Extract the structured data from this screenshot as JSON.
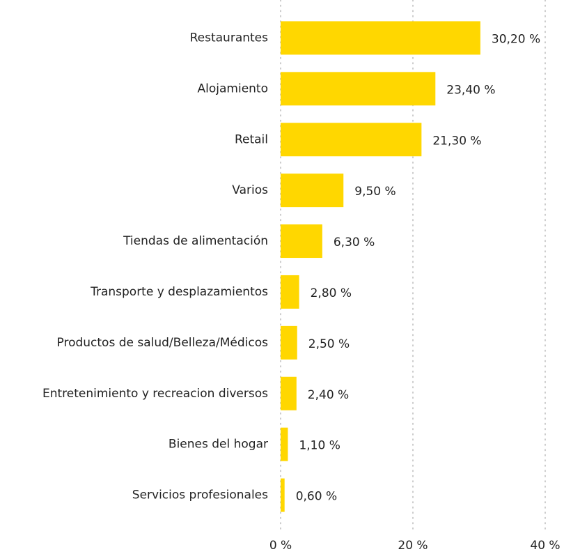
{
  "chart_data": {
    "type": "bar",
    "orientation": "horizontal",
    "categories": [
      "Restaurantes",
      "Alojamiento",
      "Retail",
      "Varios",
      "Tiendas de alimentación",
      "Transporte y desplazamientos",
      "Productos de salud/Belleza/Médicos",
      "Entretenimiento y recreacion diversos",
      "Bienes del hogar",
      "Servicios profesionales"
    ],
    "values": [
      30.2,
      23.4,
      21.3,
      9.5,
      6.3,
      2.8,
      2.5,
      2.4,
      1.1,
      0.6
    ],
    "value_labels": [
      "30,20 %",
      "23,40 %",
      "21,30 %",
      "9,50 %",
      "6,30 %",
      "2,80 %",
      "2,50 %",
      "2,40 %",
      "1,10 %",
      "0,60 %"
    ],
    "color": "#ffd700",
    "xlim": [
      0,
      40
    ],
    "xticks": [
      {
        "value": 0,
        "label": "0 %"
      },
      {
        "value": 20,
        "label": "20 %"
      },
      {
        "value": 40,
        "label": "40 %"
      }
    ],
    "grid": true
  }
}
